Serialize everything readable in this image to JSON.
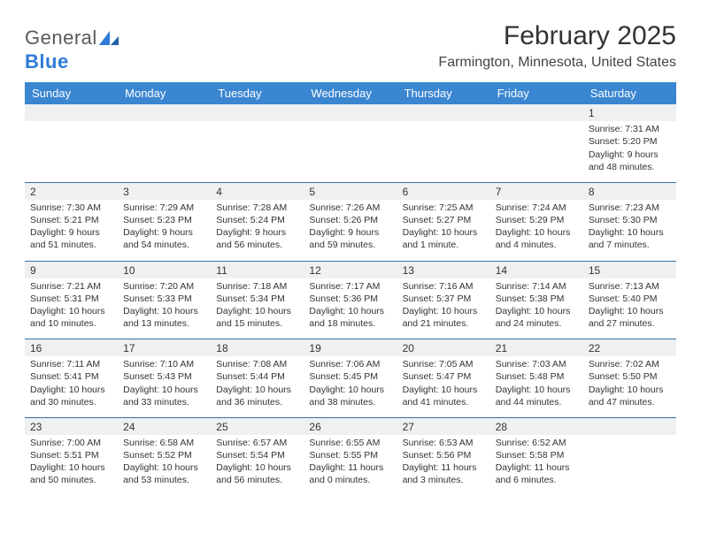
{
  "brand": {
    "name1": "General",
    "name2": "Blue"
  },
  "title": "February 2025",
  "location": "Farmington, Minnesota, United States",
  "colors": {
    "header_bg": "#3b86d1",
    "header_text": "#ffffff",
    "daynum_bg": "#eef0f2",
    "rule": "#3b6ea3",
    "text": "#333333",
    "brand_gray": "#5a5a5a",
    "brand_blue": "#2e7cd6"
  },
  "dow": [
    "Sunday",
    "Monday",
    "Tuesday",
    "Wednesday",
    "Thursday",
    "Friday",
    "Saturday"
  ],
  "weeks": [
    {
      "nums": [
        "",
        "",
        "",
        "",
        "",
        "",
        "1"
      ],
      "cells": [
        null,
        null,
        null,
        null,
        null,
        null,
        {
          "sunrise": "Sunrise: 7:31 AM",
          "sunset": "Sunset: 5:20 PM",
          "day1": "Daylight: 9 hours",
          "day2": "and 48 minutes."
        }
      ]
    },
    {
      "nums": [
        "2",
        "3",
        "4",
        "5",
        "6",
        "7",
        "8"
      ],
      "cells": [
        {
          "sunrise": "Sunrise: 7:30 AM",
          "sunset": "Sunset: 5:21 PM",
          "day1": "Daylight: 9 hours",
          "day2": "and 51 minutes."
        },
        {
          "sunrise": "Sunrise: 7:29 AM",
          "sunset": "Sunset: 5:23 PM",
          "day1": "Daylight: 9 hours",
          "day2": "and 54 minutes."
        },
        {
          "sunrise": "Sunrise: 7:28 AM",
          "sunset": "Sunset: 5:24 PM",
          "day1": "Daylight: 9 hours",
          "day2": "and 56 minutes."
        },
        {
          "sunrise": "Sunrise: 7:26 AM",
          "sunset": "Sunset: 5:26 PM",
          "day1": "Daylight: 9 hours",
          "day2": "and 59 minutes."
        },
        {
          "sunrise": "Sunrise: 7:25 AM",
          "sunset": "Sunset: 5:27 PM",
          "day1": "Daylight: 10 hours",
          "day2": "and 1 minute."
        },
        {
          "sunrise": "Sunrise: 7:24 AM",
          "sunset": "Sunset: 5:29 PM",
          "day1": "Daylight: 10 hours",
          "day2": "and 4 minutes."
        },
        {
          "sunrise": "Sunrise: 7:23 AM",
          "sunset": "Sunset: 5:30 PM",
          "day1": "Daylight: 10 hours",
          "day2": "and 7 minutes."
        }
      ]
    },
    {
      "nums": [
        "9",
        "10",
        "11",
        "12",
        "13",
        "14",
        "15"
      ],
      "cells": [
        {
          "sunrise": "Sunrise: 7:21 AM",
          "sunset": "Sunset: 5:31 PM",
          "day1": "Daylight: 10 hours",
          "day2": "and 10 minutes."
        },
        {
          "sunrise": "Sunrise: 7:20 AM",
          "sunset": "Sunset: 5:33 PM",
          "day1": "Daylight: 10 hours",
          "day2": "and 13 minutes."
        },
        {
          "sunrise": "Sunrise: 7:18 AM",
          "sunset": "Sunset: 5:34 PM",
          "day1": "Daylight: 10 hours",
          "day2": "and 15 minutes."
        },
        {
          "sunrise": "Sunrise: 7:17 AM",
          "sunset": "Sunset: 5:36 PM",
          "day1": "Daylight: 10 hours",
          "day2": "and 18 minutes."
        },
        {
          "sunrise": "Sunrise: 7:16 AM",
          "sunset": "Sunset: 5:37 PM",
          "day1": "Daylight: 10 hours",
          "day2": "and 21 minutes."
        },
        {
          "sunrise": "Sunrise: 7:14 AM",
          "sunset": "Sunset: 5:38 PM",
          "day1": "Daylight: 10 hours",
          "day2": "and 24 minutes."
        },
        {
          "sunrise": "Sunrise: 7:13 AM",
          "sunset": "Sunset: 5:40 PM",
          "day1": "Daylight: 10 hours",
          "day2": "and 27 minutes."
        }
      ]
    },
    {
      "nums": [
        "16",
        "17",
        "18",
        "19",
        "20",
        "21",
        "22"
      ],
      "cells": [
        {
          "sunrise": "Sunrise: 7:11 AM",
          "sunset": "Sunset: 5:41 PM",
          "day1": "Daylight: 10 hours",
          "day2": "and 30 minutes."
        },
        {
          "sunrise": "Sunrise: 7:10 AM",
          "sunset": "Sunset: 5:43 PM",
          "day1": "Daylight: 10 hours",
          "day2": "and 33 minutes."
        },
        {
          "sunrise": "Sunrise: 7:08 AM",
          "sunset": "Sunset: 5:44 PM",
          "day1": "Daylight: 10 hours",
          "day2": "and 36 minutes."
        },
        {
          "sunrise": "Sunrise: 7:06 AM",
          "sunset": "Sunset: 5:45 PM",
          "day1": "Daylight: 10 hours",
          "day2": "and 38 minutes."
        },
        {
          "sunrise": "Sunrise: 7:05 AM",
          "sunset": "Sunset: 5:47 PM",
          "day1": "Daylight: 10 hours",
          "day2": "and 41 minutes."
        },
        {
          "sunrise": "Sunrise: 7:03 AM",
          "sunset": "Sunset: 5:48 PM",
          "day1": "Daylight: 10 hours",
          "day2": "and 44 minutes."
        },
        {
          "sunrise": "Sunrise: 7:02 AM",
          "sunset": "Sunset: 5:50 PM",
          "day1": "Daylight: 10 hours",
          "day2": "and 47 minutes."
        }
      ]
    },
    {
      "nums": [
        "23",
        "24",
        "25",
        "26",
        "27",
        "28",
        ""
      ],
      "cells": [
        {
          "sunrise": "Sunrise: 7:00 AM",
          "sunset": "Sunset: 5:51 PM",
          "day1": "Daylight: 10 hours",
          "day2": "and 50 minutes."
        },
        {
          "sunrise": "Sunrise: 6:58 AM",
          "sunset": "Sunset: 5:52 PM",
          "day1": "Daylight: 10 hours",
          "day2": "and 53 minutes."
        },
        {
          "sunrise": "Sunrise: 6:57 AM",
          "sunset": "Sunset: 5:54 PM",
          "day1": "Daylight: 10 hours",
          "day2": "and 56 minutes."
        },
        {
          "sunrise": "Sunrise: 6:55 AM",
          "sunset": "Sunset: 5:55 PM",
          "day1": "Daylight: 11 hours",
          "day2": "and 0 minutes."
        },
        {
          "sunrise": "Sunrise: 6:53 AM",
          "sunset": "Sunset: 5:56 PM",
          "day1": "Daylight: 11 hours",
          "day2": "and 3 minutes."
        },
        {
          "sunrise": "Sunrise: 6:52 AM",
          "sunset": "Sunset: 5:58 PM",
          "day1": "Daylight: 11 hours",
          "day2": "and 6 minutes."
        },
        null
      ]
    }
  ]
}
